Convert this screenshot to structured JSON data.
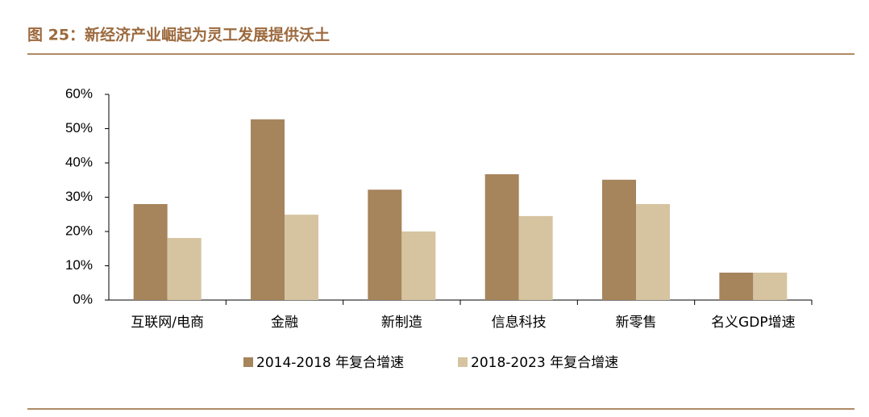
{
  "chart_data": {
    "type": "bar",
    "title": "图 25：新经济产业崛起为灵工发展提供沃土",
    "categories": [
      "互联网/电商",
      "金融",
      "新制造",
      "信息科技",
      "新零售",
      "名义GDP增速"
    ],
    "series": [
      {
        "name": "2014-2018 年复合增速",
        "color": "#a6845c",
        "values": [
          28.0,
          52.7,
          32.2,
          36.7,
          35.1,
          8.0
        ]
      },
      {
        "name": "2018-2023 年复合增速",
        "color": "#d6c4a0",
        "values": [
          18.1,
          24.9,
          20.0,
          24.5,
          28.0,
          8.0
        ]
      }
    ],
    "ylim": [
      0,
      60
    ],
    "yticks": [
      {
        "value": 0,
        "label": "0%"
      },
      {
        "value": 10,
        "label": "10%"
      },
      {
        "value": 20,
        "label": "20%"
      },
      {
        "value": 30,
        "label": "30%"
      },
      {
        "value": 40,
        "label": "40%"
      },
      {
        "value": 50,
        "label": "50%"
      },
      {
        "value": 60,
        "label": "60%"
      }
    ],
    "grid": false
  }
}
